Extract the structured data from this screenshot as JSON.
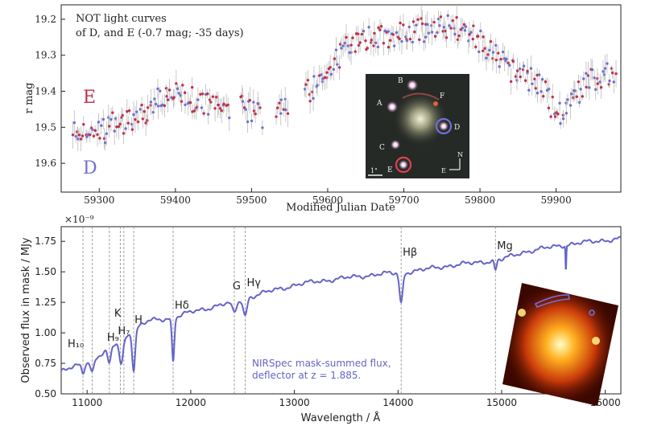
{
  "chart_data": [
    {
      "type": "scatter",
      "title": "",
      "annotation_lines": [
        "NOT light curves",
        "of D, and E (-0.7 mag; -35 days)"
      ],
      "xlabel": "Modified Julian Date",
      "ylabel": "r mag",
      "xlim": [
        59250,
        59985
      ],
      "ylim": [
        19.68,
        19.16
      ],
      "y_inverted": true,
      "x_ticks": [
        59300,
        59400,
        59500,
        59600,
        59700,
        59800,
        59900
      ],
      "y_ticks": [
        19.2,
        19.3,
        19.4,
        19.5,
        19.6
      ],
      "x_tick_labels": [
        "59300",
        "59400",
        "59500",
        "59600",
        "59700",
        "59800",
        "59900"
      ],
      "y_tick_labels": [
        "19.2",
        "19.3",
        "19.4",
        "19.5",
        "19.6"
      ],
      "series": [
        {
          "name": "E",
          "color": "#c0304a"
        },
        {
          "name": "D",
          "color": "#6f6fd0"
        }
      ],
      "trend": {
        "x": [
          59255,
          59280,
          59300,
          59320,
          59340,
          59360,
          59380,
          59400,
          59420,
          59440,
          59460,
          59480,
          59500,
          59520,
          59540,
          59560,
          59580,
          59600,
          59620,
          59640,
          59660,
          59680,
          59700,
          59720,
          59740,
          59760,
          59780,
          59800,
          59820,
          59840,
          59860,
          59880,
          59900,
          59920,
          59940,
          59960,
          59980
        ],
        "y": [
          19.52,
          19.5,
          19.52,
          19.49,
          19.48,
          19.46,
          19.42,
          19.41,
          19.42,
          19.44,
          19.45,
          19.44,
          19.46,
          19.48,
          19.45,
          19.41,
          19.39,
          19.34,
          19.29,
          19.26,
          19.25,
          19.25,
          19.24,
          19.23,
          19.23,
          19.22,
          19.23,
          19.26,
          19.3,
          19.34,
          19.36,
          19.38,
          19.47,
          19.42,
          19.38,
          19.36,
          19.35
        ]
      },
      "inset": {
        "labels": [
          "A",
          "B",
          "C",
          "D",
          "E",
          "F"
        ],
        "scale_label": "1\"",
        "compass": [
          "N",
          "E"
        ]
      }
    },
    {
      "type": "line",
      "title": "",
      "xlabel": "Wavelength / Å",
      "ylabel": "Observed flux in mask / MJy",
      "exponent_label": "×10⁻⁹",
      "xlim": [
        10750,
        16150
      ],
      "ylim": [
        0.5,
        1.87
      ],
      "x_ticks": [
        11000,
        12000,
        13000,
        14000,
        15000,
        16000
      ],
      "y_ticks": [
        0.5,
        0.75,
        1.0,
        1.25,
        1.5,
        1.75
      ],
      "x_tick_labels": [
        "11000",
        "12000",
        "13000",
        "14000",
        "15000",
        "16000"
      ],
      "y_tick_labels": [
        "0.50",
        "0.75",
        "1.00",
        "1.25",
        "1.50",
        "1.75"
      ],
      "legend_lines": [
        "NIRSpec mask-summed flux,",
        "deflector at z = 1.885."
      ],
      "series_color": "#6464c8",
      "lines": [
        {
          "label": "H₁₀",
          "x": 10960
        },
        {
          "label": "",
          "x": 11050
        },
        {
          "label": "H₉",
          "x": 11215
        },
        {
          "label": "H₇",
          "x": 11320
        },
        {
          "label": "K",
          "x": 11355
        },
        {
          "label": "H",
          "x": 11450
        },
        {
          "label": "Hδ",
          "x": 11830
        },
        {
          "label": "G",
          "x": 12420
        },
        {
          "label": "Hγ",
          "x": 12525
        },
        {
          "label": "Hβ",
          "x": 14030
        },
        {
          "label": "Mg",
          "x": 14940
        }
      ],
      "continuum": {
        "x": [
          10750,
          10900,
          11000,
          11100,
          11200,
          11300,
          11400,
          11500,
          11600,
          11700,
          11800,
          11900,
          12000,
          12200,
          12400,
          12600,
          12800,
          13000,
          13200,
          13400,
          13600,
          13800,
          14000,
          14200,
          14400,
          14600,
          14800,
          15000,
          15200,
          15400,
          15600,
          15800,
          16000,
          16150
        ],
        "y": [
          0.68,
          0.73,
          0.76,
          0.8,
          0.86,
          0.93,
          0.99,
          1.05,
          1.1,
          1.11,
          1.12,
          1.14,
          1.17,
          1.21,
          1.25,
          1.3,
          1.35,
          1.39,
          1.42,
          1.44,
          1.46,
          1.48,
          1.49,
          1.51,
          1.54,
          1.56,
          1.58,
          1.6,
          1.66,
          1.69,
          1.72,
          1.74,
          1.76,
          1.77
        ]
      },
      "absorption": [
        {
          "x": 10960,
          "depth": 0.07,
          "width": 20
        },
        {
          "x": 11050,
          "depth": 0.1,
          "width": 22
        },
        {
          "x": 11215,
          "depth": 0.13,
          "width": 22
        },
        {
          "x": 11330,
          "depth": 0.2,
          "width": 26
        },
        {
          "x": 11450,
          "depth": 0.32,
          "width": 20
        },
        {
          "x": 11830,
          "depth": 0.36,
          "width": 16
        },
        {
          "x": 12420,
          "depth": 0.09,
          "width": 30
        },
        {
          "x": 12525,
          "depth": 0.14,
          "width": 24
        },
        {
          "x": 14030,
          "depth": 0.25,
          "width": 22
        },
        {
          "x": 14940,
          "depth": 0.08,
          "width": 16
        },
        {
          "x": 15620,
          "depth": 0.22,
          "width": 5
        }
      ]
    }
  ]
}
